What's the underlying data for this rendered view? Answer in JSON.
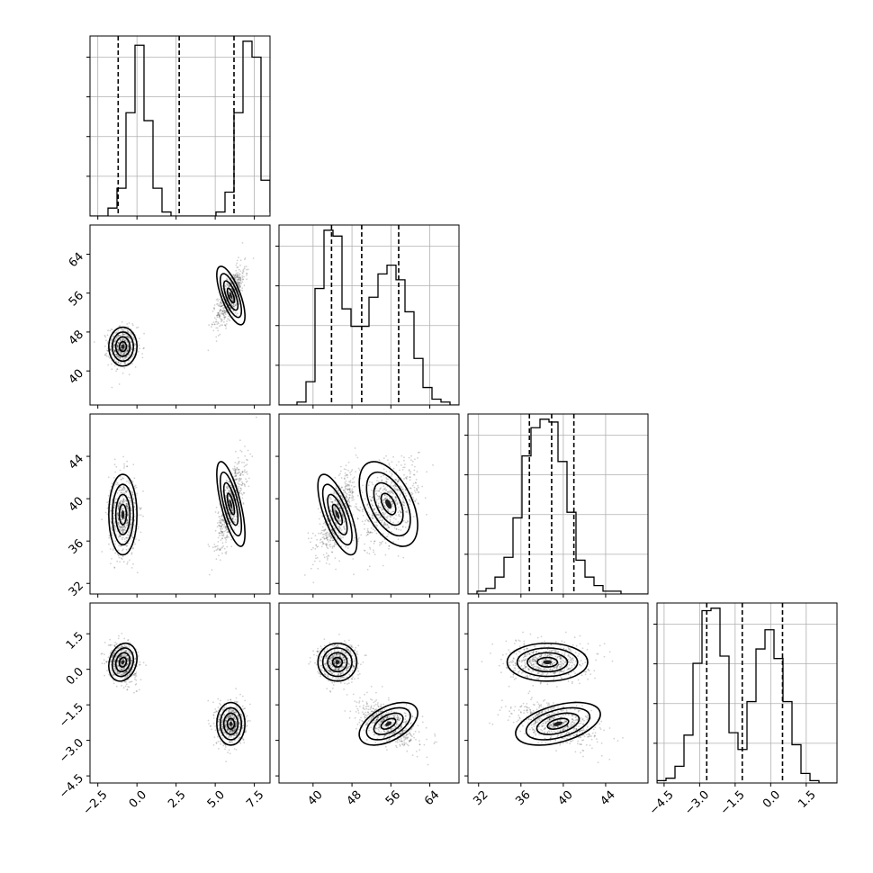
{
  "chart_data": {
    "type": "corner",
    "parameters": [
      {
        "id": "p1",
        "range": [
          -3.0,
          8.5
        ],
        "ticks": [
          -2.5,
          0.0,
          2.5,
          5.0,
          7.5
        ],
        "tick_labels": [
          "−2.5",
          "0.0",
          "2.5",
          "5.0",
          "7.5"
        ],
        "quantiles": [
          -1.2,
          2.7,
          6.2
        ],
        "hist_start": -3.0,
        "hist_width": 0.575,
        "hist_counts": [
          0,
          0,
          2,
          7,
          26,
          43,
          24,
          7,
          1,
          0,
          0,
          0,
          0,
          0,
          1,
          6,
          26,
          44,
          40,
          9,
          1,
          0
        ]
      },
      {
        "id": "p2",
        "range": [
          33,
          70
        ],
        "ticks": [
          40,
          48,
          56,
          64
        ],
        "tick_labels": [
          "40",
          "48",
          "56",
          "64"
        ],
        "quantiles": [
          43.8,
          50.0,
          57.6
        ],
        "hist_start": 33,
        "hist_width": 1.85,
        "hist_counts": [
          0,
          0,
          1,
          8,
          40,
          60,
          58,
          33,
          27,
          27,
          37,
          45,
          48,
          43,
          32,
          16,
          6,
          2,
          1,
          0
        ]
      },
      {
        "id": "p3",
        "range": [
          31,
          48
        ],
        "ticks": [
          32,
          36,
          40,
          44
        ],
        "tick_labels": [
          "32",
          "36",
          "40",
          "44"
        ],
        "quantiles": [
          36.8,
          38.9,
          41.0
        ],
        "hist_start": 31,
        "hist_width": 0.85,
        "hist_counts": [
          0,
          1,
          2,
          6,
          13,
          27,
          49,
          59,
          62,
          61,
          47,
          29,
          12,
          6,
          3,
          1,
          1,
          0,
          0,
          0
        ]
      },
      {
        "id": "p4",
        "range": [
          -4.8,
          2.8
        ],
        "ticks": [
          -4.5,
          -3.0,
          -1.5,
          0.0,
          1.5
        ],
        "tick_labels": [
          "−4.5",
          "−3.0",
          "−1.5",
          "0.0",
          "1.5"
        ],
        "quantiles": [
          -2.7,
          -1.2,
          0.5
        ],
        "hist_start": -4.8,
        "hist_width": 0.38,
        "hist_counts": [
          1,
          2,
          7,
          20,
          50,
          72,
          73,
          53,
          21,
          14,
          34,
          56,
          64,
          52,
          34,
          16,
          4,
          1,
          0,
          0
        ]
      }
    ],
    "modes": [
      {
        "center": [
          -0.9,
          45.0,
          38.5,
          0.3
        ],
        "sd": [
          0.45,
          2.0,
          1.9,
          0.4
        ],
        "corr": {
          "1-0": 0.0,
          "2-0": 0.0,
          "2-1": 0.7,
          "3-0": -0.2,
          "3-1": 0.0,
          "3-2": 0.0
        }
      },
      {
        "center": [
          6.0,
          55.5,
          39.5,
          -2.3
        ],
        "sd": [
          0.45,
          3.0,
          2.0,
          0.45
        ],
        "corr": {
          "1-0": 0.7,
          "2-0": 0.7,
          "2-1": 0.5,
          "3-0": 0.0,
          "3-1": -0.5,
          "3-2": -0.45
        }
      }
    ],
    "contour_levels_sigma": [
      0.5,
      1.0,
      1.5,
      2.0
    ],
    "grid": true
  }
}
